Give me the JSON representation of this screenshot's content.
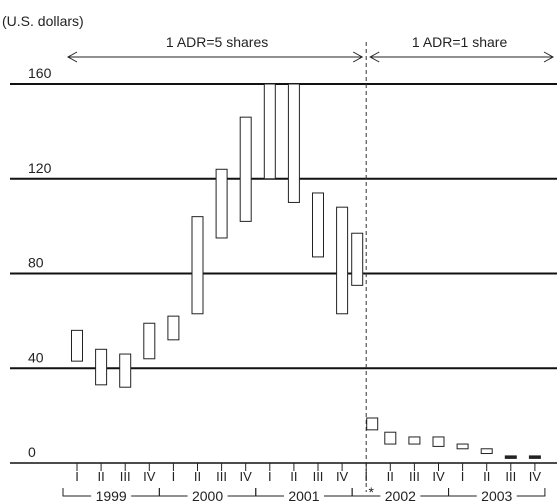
{
  "chart_data": {
    "type": "bar",
    "ylabel": "(U.S. dollars)",
    "ylim": [
      0,
      160
    ],
    "yticks": [
      0,
      40,
      80,
      120,
      160
    ],
    "grid": true,
    "quarters": [
      "I",
      "II",
      "III",
      "IV",
      "I",
      "II",
      "III",
      "IV",
      "I",
      "II",
      "III",
      "IV",
      "I",
      "II",
      "III",
      "IV",
      "I",
      "II",
      "III",
      "IV"
    ],
    "years": [
      "1999",
      "2000",
      "2001",
      "2002",
      "2003"
    ],
    "split_marker": "*",
    "periods": [
      {
        "label": "1 ADR=5 shares"
      },
      {
        "label": "1 ADR=1 share"
      }
    ],
    "ranges": [
      {
        "quarter": "I",
        "year": "1999",
        "low": 43,
        "high": 56
      },
      {
        "quarter": "II",
        "year": "1999",
        "low": 33,
        "high": 48
      },
      {
        "quarter": "III",
        "year": "1999",
        "low": 32,
        "high": 46
      },
      {
        "quarter": "IV",
        "year": "1999",
        "low": 44,
        "high": 59
      },
      {
        "quarter": "I",
        "year": "2000",
        "low": 52,
        "high": 62
      },
      {
        "quarter": "II",
        "year": "2000",
        "low": 63,
        "high": 104
      },
      {
        "quarter": "III",
        "year": "2000",
        "low": 95,
        "high": 124
      },
      {
        "quarter": "IV",
        "year": "2000",
        "low": 102,
        "high": 146
      },
      {
        "quarter": "I",
        "year": "2001",
        "low": 120,
        "high": 160
      },
      {
        "quarter": "II",
        "year": "2001",
        "low": 110,
        "high": 160
      },
      {
        "quarter": "III",
        "year": "2001",
        "low": 87,
        "high": 114
      },
      {
        "quarter": "IV",
        "year": "2001",
        "low": 63,
        "high": 108
      },
      {
        "quarter": "I",
        "year": "2002",
        "low": 75,
        "high": 97
      },
      {
        "quarter": "I",
        "year": "2002",
        "low": 14,
        "high": 19
      },
      {
        "quarter": "II",
        "year": "2002",
        "low": 8,
        "high": 13
      },
      {
        "quarter": "III",
        "year": "2002",
        "low": 8,
        "high": 11
      },
      {
        "quarter": "IV",
        "year": "2002",
        "low": 7,
        "high": 11
      },
      {
        "quarter": "I",
        "year": "2003",
        "low": 6,
        "high": 8
      },
      {
        "quarter": "II",
        "year": "2003",
        "low": 4,
        "high": 6
      },
      {
        "quarter": "III",
        "year": "2003",
        "low": 2,
        "high": 3
      },
      {
        "quarter": "IV",
        "year": "2003",
        "low": 2,
        "high": 3
      }
    ]
  }
}
